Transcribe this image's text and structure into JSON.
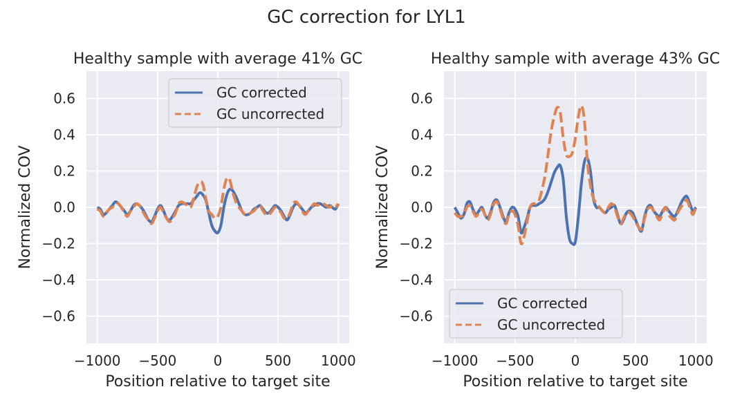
{
  "suptitle": "GC correction for LYL1",
  "colors": {
    "corrected": "#4c72b0",
    "uncorrected": "#dd8452",
    "panel_bg": "#eaeaf2",
    "grid": "#ffffff",
    "text": "#262626"
  },
  "chart_data": [
    {
      "type": "line",
      "title": "Healthy sample with average 41% GC",
      "xlabel": "Position relative to target site",
      "ylabel": "Normalized COV",
      "xlim": [
        -1090,
        1090
      ],
      "ylim": [
        -0.75,
        0.75
      ],
      "xticks": [
        -1000,
        -500,
        0,
        500,
        1000
      ],
      "yticks": [
        -0.6,
        -0.4,
        -0.2,
        0.0,
        0.2,
        0.4,
        0.6
      ],
      "xtick_labels": [
        "−1000",
        "−500",
        "0",
        "500",
        "1000"
      ],
      "ytick_labels": [
        "−0.6",
        "−0.4",
        "−0.2",
        "0.0",
        "0.2",
        "0.4",
        "0.6"
      ],
      "grid": true,
      "legend": {
        "position": "upper right",
        "entries": [
          "GC corrected",
          "GC uncorrected"
        ]
      },
      "series": [
        {
          "name": "GC corrected",
          "style": "solid",
          "x": [
            -1000,
            -975,
            -950,
            -925,
            -900,
            -875,
            -850,
            -825,
            -800,
            -775,
            -750,
            -725,
            -700,
            -675,
            -650,
            -625,
            -600,
            -575,
            -550,
            -525,
            -500,
            -475,
            -450,
            -425,
            -400,
            -375,
            -350,
            -325,
            -300,
            -275,
            -250,
            -225,
            -200,
            -175,
            -150,
            -125,
            -100,
            -75,
            -50,
            -25,
            0,
            25,
            50,
            75,
            100,
            125,
            150,
            175,
            200,
            225,
            250,
            275,
            300,
            325,
            350,
            375,
            400,
            425,
            450,
            475,
            500,
            525,
            550,
            575,
            600,
            625,
            650,
            675,
            700,
            725,
            750,
            775,
            800,
            825,
            850,
            875,
            900,
            925,
            950,
            975,
            1000
          ],
          "y": [
            0.0,
            -0.01,
            -0.04,
            -0.03,
            -0.01,
            0.01,
            0.03,
            0.02,
            0.0,
            -0.02,
            -0.04,
            -0.02,
            0.01,
            0.02,
            0.01,
            -0.01,
            -0.04,
            -0.07,
            -0.08,
            -0.05,
            -0.01,
            0.01,
            -0.02,
            -0.06,
            -0.07,
            -0.05,
            -0.02,
            0.01,
            0.02,
            0.02,
            0.02,
            0.02,
            0.04,
            0.06,
            0.08,
            0.07,
            0.04,
            -0.03,
            -0.1,
            -0.13,
            -0.14,
            -0.1,
            0.0,
            0.07,
            0.1,
            0.09,
            0.06,
            0.02,
            -0.02,
            -0.04,
            -0.04,
            -0.03,
            -0.01,
            0.0,
            0.01,
            -0.01,
            -0.03,
            -0.03,
            -0.01,
            0.01,
            0.0,
            -0.02,
            -0.05,
            -0.07,
            -0.04,
            0.0,
            0.02,
            0.01,
            -0.01,
            -0.03,
            -0.02,
            0.0,
            0.01,
            0.02,
            0.02,
            0.01,
            0.0,
            0.01,
            0.0,
            -0.01,
            0.02
          ]
        },
        {
          "name": "GC uncorrected",
          "style": "dashed",
          "x": [
            -1000,
            -975,
            -950,
            -925,
            -900,
            -875,
            -850,
            -825,
            -800,
            -775,
            -750,
            -725,
            -700,
            -675,
            -650,
            -625,
            -600,
            -575,
            -550,
            -525,
            -500,
            -475,
            -450,
            -425,
            -400,
            -375,
            -350,
            -325,
            -300,
            -275,
            -250,
            -225,
            -200,
            -175,
            -150,
            -125,
            -100,
            -75,
            -50,
            -25,
            0,
            25,
            50,
            75,
            100,
            125,
            150,
            175,
            200,
            225,
            250,
            275,
            300,
            325,
            350,
            375,
            400,
            425,
            450,
            475,
            500,
            525,
            550,
            575,
            600,
            625,
            650,
            675,
            700,
            725,
            750,
            775,
            800,
            825,
            850,
            875,
            900,
            925,
            950,
            975,
            1000
          ],
          "y": [
            -0.01,
            -0.02,
            -0.05,
            -0.03,
            -0.01,
            0.0,
            0.02,
            0.02,
            0.0,
            -0.03,
            -0.05,
            -0.02,
            0.0,
            0.02,
            0.01,
            -0.02,
            -0.05,
            -0.07,
            -0.09,
            -0.06,
            -0.02,
            0.0,
            -0.03,
            -0.06,
            -0.08,
            -0.06,
            -0.03,
            0.02,
            0.03,
            0.02,
            0.01,
            0.0,
            0.05,
            0.11,
            0.14,
            0.13,
            0.05,
            -0.02,
            -0.04,
            -0.06,
            -0.05,
            0.0,
            0.1,
            0.16,
            0.15,
            0.08,
            0.03,
            0.0,
            -0.02,
            -0.04,
            -0.04,
            -0.03,
            -0.02,
            0.0,
            0.01,
            -0.02,
            -0.04,
            -0.04,
            -0.02,
            0.0,
            -0.01,
            -0.03,
            -0.06,
            -0.06,
            -0.03,
            0.02,
            0.03,
            0.01,
            -0.02,
            -0.04,
            -0.02,
            0.0,
            0.02,
            0.01,
            0.02,
            0.02,
            0.01,
            0.0,
            0.01,
            0.0,
            0.02
          ]
        }
      ]
    },
    {
      "type": "line",
      "title": "Healthy sample with average 43% GC",
      "xlabel": "Position relative to target site",
      "ylabel": "Normalized COV",
      "xlim": [
        -1090,
        1090
      ],
      "ylim": [
        -0.75,
        0.75
      ],
      "xticks": [
        -1000,
        -500,
        0,
        500,
        1000
      ],
      "yticks": [
        -0.6,
        -0.4,
        -0.2,
        0.0,
        0.2,
        0.4,
        0.6
      ],
      "xtick_labels": [
        "−1000",
        "−500",
        "0",
        "500",
        "1000"
      ],
      "ytick_labels": [
        "−0.6",
        "−0.4",
        "−0.2",
        "0.0",
        "0.2",
        "0.4",
        "0.6"
      ],
      "grid": true,
      "legend": {
        "position": "lower left",
        "entries": [
          "GC corrected",
          "GC uncorrected"
        ]
      },
      "series": [
        {
          "name": "GC corrected",
          "style": "solid",
          "x": [
            -1000,
            -975,
            -950,
            -925,
            -900,
            -875,
            -850,
            -825,
            -800,
            -775,
            -750,
            -725,
            -700,
            -675,
            -650,
            -625,
            -600,
            -575,
            -550,
            -525,
            -500,
            -475,
            -450,
            -425,
            -400,
            -375,
            -350,
            -325,
            -300,
            -275,
            -250,
            -225,
            -200,
            -175,
            -150,
            -125,
            -100,
            -75,
            -50,
            -25,
            0,
            25,
            50,
            75,
            100,
            125,
            150,
            175,
            200,
            225,
            250,
            275,
            300,
            325,
            350,
            375,
            400,
            425,
            450,
            475,
            500,
            525,
            550,
            575,
            600,
            625,
            650,
            675,
            700,
            725,
            750,
            775,
            800,
            825,
            850,
            875,
            900,
            925,
            950,
            975,
            1000
          ],
          "y": [
            0.0,
            -0.03,
            -0.06,
            -0.04,
            0.02,
            0.03,
            -0.01,
            -0.04,
            -0.02,
            0.0,
            -0.04,
            -0.06,
            -0.02,
            0.03,
            0.04,
            0.0,
            -0.05,
            -0.08,
            -0.03,
            0.0,
            -0.01,
            -0.05,
            -0.14,
            -0.11,
            -0.06,
            0.0,
            0.01,
            0.01,
            0.02,
            0.03,
            0.05,
            0.09,
            0.14,
            0.19,
            0.22,
            0.23,
            0.15,
            -0.05,
            -0.17,
            -0.2,
            -0.19,
            -0.05,
            0.13,
            0.25,
            0.27,
            0.2,
            0.05,
            0.0,
            0.0,
            -0.02,
            -0.03,
            -0.01,
            0.0,
            0.01,
            -0.04,
            -0.09,
            -0.07,
            -0.03,
            -0.02,
            -0.03,
            -0.07,
            -0.11,
            -0.13,
            -0.05,
            0.0,
            0.01,
            -0.02,
            -0.04,
            -0.05,
            -0.02,
            0.0,
            -0.02,
            -0.04,
            -0.05,
            -0.02,
            0.02,
            0.05,
            0.06,
            0.02,
            -0.02,
            0.0
          ]
        },
        {
          "name": "GC uncorrected",
          "style": "dashed",
          "x": [
            -1000,
            -975,
            -950,
            -925,
            -900,
            -875,
            -850,
            -825,
            -800,
            -775,
            -750,
            -725,
            -700,
            -675,
            -650,
            -625,
            -600,
            -575,
            -550,
            -525,
            -500,
            -475,
            -450,
            -425,
            -400,
            -375,
            -350,
            -325,
            -300,
            -275,
            -250,
            -225,
            -200,
            -175,
            -150,
            -125,
            -100,
            -75,
            -50,
            -25,
            0,
            25,
            50,
            75,
            100,
            125,
            150,
            175,
            200,
            225,
            250,
            275,
            300,
            325,
            350,
            375,
            400,
            425,
            450,
            475,
            500,
            525,
            550,
            575,
            600,
            625,
            650,
            675,
            700,
            725,
            750,
            775,
            800,
            825,
            850,
            875,
            900,
            925,
            950,
            975,
            1000
          ],
          "y": [
            -0.03,
            -0.05,
            -0.05,
            -0.04,
            0.0,
            0.01,
            -0.02,
            -0.05,
            -0.03,
            -0.01,
            -0.04,
            -0.07,
            -0.03,
            0.02,
            0.03,
            -0.01,
            -0.06,
            -0.09,
            -0.04,
            -0.02,
            -0.04,
            -0.1,
            -0.2,
            -0.16,
            -0.08,
            0.0,
            0.02,
            0.02,
            0.04,
            0.1,
            0.18,
            0.3,
            0.42,
            0.5,
            0.55,
            0.52,
            0.38,
            0.29,
            0.28,
            0.3,
            0.38,
            0.5,
            0.56,
            0.48,
            0.25,
            0.12,
            0.05,
            0.02,
            0.0,
            -0.02,
            -0.03,
            0.0,
            0.02,
            0.0,
            -0.05,
            -0.09,
            -0.06,
            -0.03,
            -0.03,
            -0.05,
            -0.08,
            -0.11,
            -0.12,
            -0.06,
            -0.01,
            0.0,
            -0.02,
            -0.05,
            -0.07,
            -0.03,
            0.0,
            -0.04,
            -0.06,
            -0.07,
            -0.03,
            0.0,
            0.02,
            0.04,
            0.0,
            -0.04,
            0.0
          ]
        }
      ]
    }
  ]
}
